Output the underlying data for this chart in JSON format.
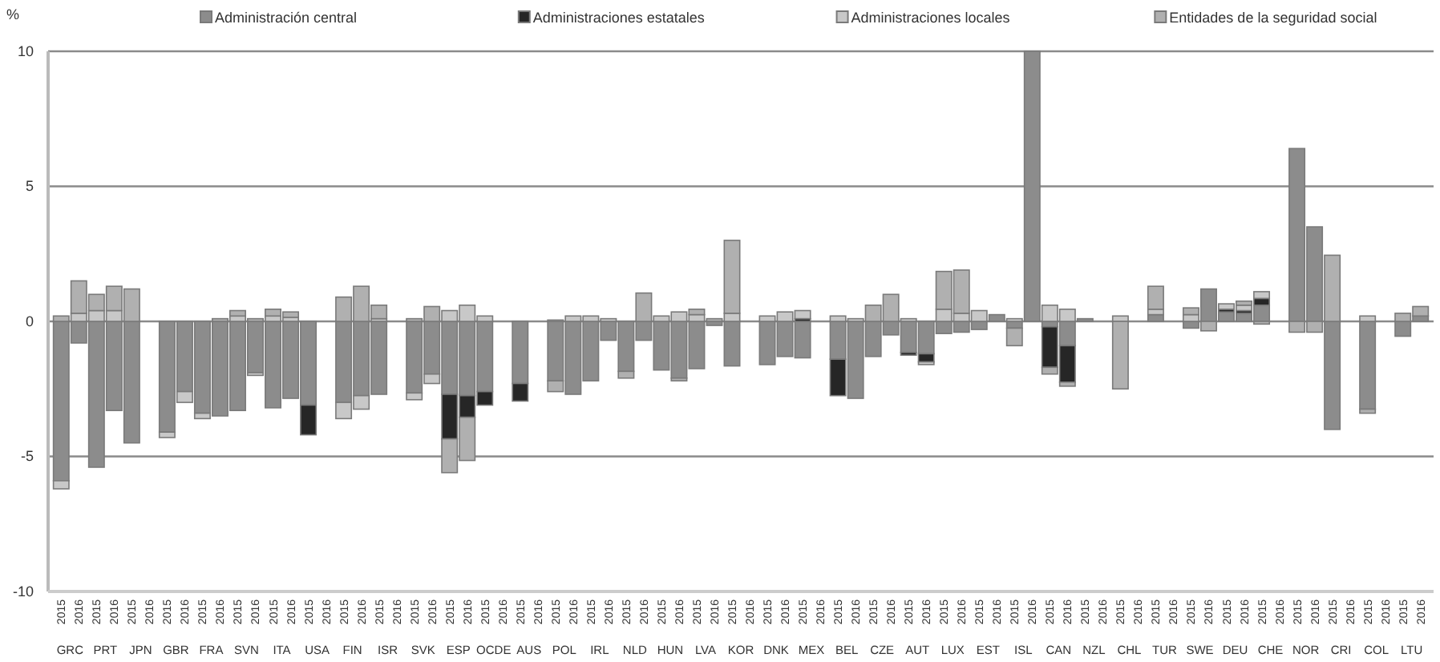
{
  "chart_data": {
    "type": "bar",
    "stacked": true,
    "ylabel": "%",
    "categories": [
      "2015",
      "2016",
      "2015",
      "2016",
      "2015",
      "2016",
      "2015",
      "2016",
      "2015",
      "2016",
      "2015",
      "2016",
      "2015",
      "2016",
      "2015",
      "2016",
      "2015",
      "2016",
      "2015",
      "2016",
      "2015",
      "2016",
      "2015",
      "2016",
      "2015",
      "2016",
      "2015",
      "2016",
      "2015",
      "2016",
      "2015",
      "2016",
      "2015",
      "2016",
      "2015",
      "2016",
      "2015",
      "2016",
      "2015",
      "2016",
      "2015",
      "2016",
      "2015",
      "2016",
      "2015",
      "2016",
      "2015",
      "2016",
      "2015",
      "2016",
      "2015",
      "2016",
      "2015",
      "2016",
      "2015",
      "2016",
      "2015",
      "2016",
      "2015",
      "2016",
      "2015",
      "2016",
      "2015",
      "2016",
      "2015",
      "2016",
      "2015",
      "2016",
      "2015",
      "2016",
      "2015",
      "2016",
      "2015",
      "2016",
      "2015",
      "2016",
      "2015",
      "2016"
    ],
    "annotations": [
      "GRC",
      "PRT",
      "JPN",
      "GBR",
      "FRA",
      "SVN",
      "ITA",
      "USA",
      "FIN",
      "ISR",
      "SVK",
      "ESP",
      "OCDE",
      "AUS",
      "POL",
      "IRL",
      "NLD",
      "HUN",
      "LVA",
      "KOR",
      "DNK",
      "MEX",
      "BEL",
      "CZE",
      "AUT",
      "LUX",
      "EST",
      "ISL",
      "CAN",
      "NZL",
      "CHL",
      "TUR",
      "SWE",
      "DEU",
      "CHE",
      "NOR",
      "CRI",
      "COL",
      "LTU"
    ],
    "series": [
      {
        "name": "Administración central",
        "color": "#8c8c8c",
        "values": [
          -5.9,
          -0.8,
          -5.4,
          -3.3,
          -4.5,
          null,
          -4.1,
          -2.6,
          -3.4,
          -3.5,
          -3.3,
          -1.9,
          -3.2,
          -2.85,
          -3.1,
          null,
          -3.0,
          -2.75,
          -2.7,
          null,
          -2.65,
          -1.95,
          -2.7,
          -2.75,
          -2.6,
          null,
          -2.3,
          null,
          -2.2,
          -2.7,
          -2.2,
          -0.7,
          -1.85,
          -0.7,
          -1.8,
          -2.1,
          -1.75,
          -0.15,
          -1.65,
          null,
          -1.6,
          -1.3,
          -1.35,
          null,
          -1.4,
          -2.85,
          -1.3,
          -0.5,
          -1.15,
          -1.2,
          -0.45,
          -0.4,
          -0.3,
          0.25,
          -0.25,
          10,
          -0.2,
          -0.9,
          0.1,
          null,
          null,
          null,
          0.25,
          null,
          -0.25,
          1.2,
          0.35,
          0.3,
          0.6,
          null,
          6.4,
          3.5,
          -4.0,
          null,
          -3.25,
          null,
          -0.55,
          0.2
        ]
      },
      {
        "name": "Administraciones estatales",
        "color": "#262626",
        "values": [
          null,
          null,
          null,
          null,
          null,
          null,
          null,
          null,
          null,
          null,
          null,
          null,
          null,
          null,
          -1.1,
          null,
          null,
          null,
          null,
          null,
          null,
          null,
          -1.65,
          -0.8,
          -0.5,
          null,
          -0.65,
          null,
          null,
          null,
          null,
          null,
          null,
          null,
          null,
          null,
          null,
          null,
          null,
          null,
          null,
          null,
          0.1,
          null,
          -1.35,
          null,
          null,
          null,
          -0.1,
          -0.3,
          null,
          null,
          null,
          null,
          null,
          null,
          -1.5,
          -1.35,
          null,
          null,
          null,
          null,
          null,
          null,
          null,
          null,
          0.1,
          0.1,
          0.25,
          null,
          null,
          null,
          null,
          null,
          null,
          null,
          null,
          null
        ]
      },
      {
        "name": "Administraciones locales",
        "color": "#c8c8c8",
        "values": [
          -0.3,
          0.3,
          0.4,
          0.4,
          null,
          null,
          -0.2,
          -0.4,
          -0.2,
          null,
          0.2,
          -0.1,
          0.2,
          0.15,
          null,
          null,
          -0.6,
          -0.5,
          0.1,
          null,
          -0.25,
          -0.35,
          0.4,
          0.6,
          0.2,
          null,
          null,
          null,
          0.05,
          0.2,
          0.2,
          0.1,
          null,
          null,
          0.2,
          0.35,
          0.25,
          null,
          0.3,
          null,
          0.2,
          0.35,
          0.3,
          null,
          0.2,
          0.1,
          null,
          null,
          0.1,
          -0.1,
          0.45,
          0.3,
          0.4,
          null,
          0.1,
          null,
          0.6,
          0.45,
          null,
          null,
          0.2,
          null,
          0.2,
          null,
          0.25,
          null,
          0.2,
          0.2,
          0.25,
          null,
          null,
          null,
          null,
          null,
          0.2,
          null,
          null,
          null
        ]
      },
      {
        "name": "Entidades de la seguridad social",
        "color": "#b0b0b0",
        "values": [
          0.2,
          1.2,
          0.6,
          0.9,
          1.2,
          null,
          null,
          null,
          null,
          0.1,
          0.2,
          0.1,
          0.25,
          0.2,
          null,
          null,
          0.9,
          1.3,
          0.5,
          null,
          0.1,
          0.55,
          -1.25,
          -1.6,
          null,
          null,
          null,
          null,
          -0.4,
          null,
          null,
          null,
          -0.25,
          1.05,
          null,
          -0.1,
          0.2,
          0.1,
          2.7,
          null,
          null,
          null,
          null,
          null,
          null,
          null,
          0.6,
          1.0,
          null,
          null,
          1.4,
          1.6,
          null,
          null,
          -0.65,
          null,
          -0.25,
          -0.15,
          null,
          null,
          -2.5,
          null,
          0.85,
          null,
          0.25,
          -0.35,
          null,
          0.15,
          -0.1,
          null,
          -0.4,
          -0.4,
          2.45,
          null,
          -0.15,
          null,
          0.3,
          0.35
        ]
      }
    ],
    "ylim": [
      -10,
      10
    ],
    "yticks": [
      -10,
      -5,
      0,
      5,
      10
    ],
    "grid": "y",
    "legend": "top"
  }
}
